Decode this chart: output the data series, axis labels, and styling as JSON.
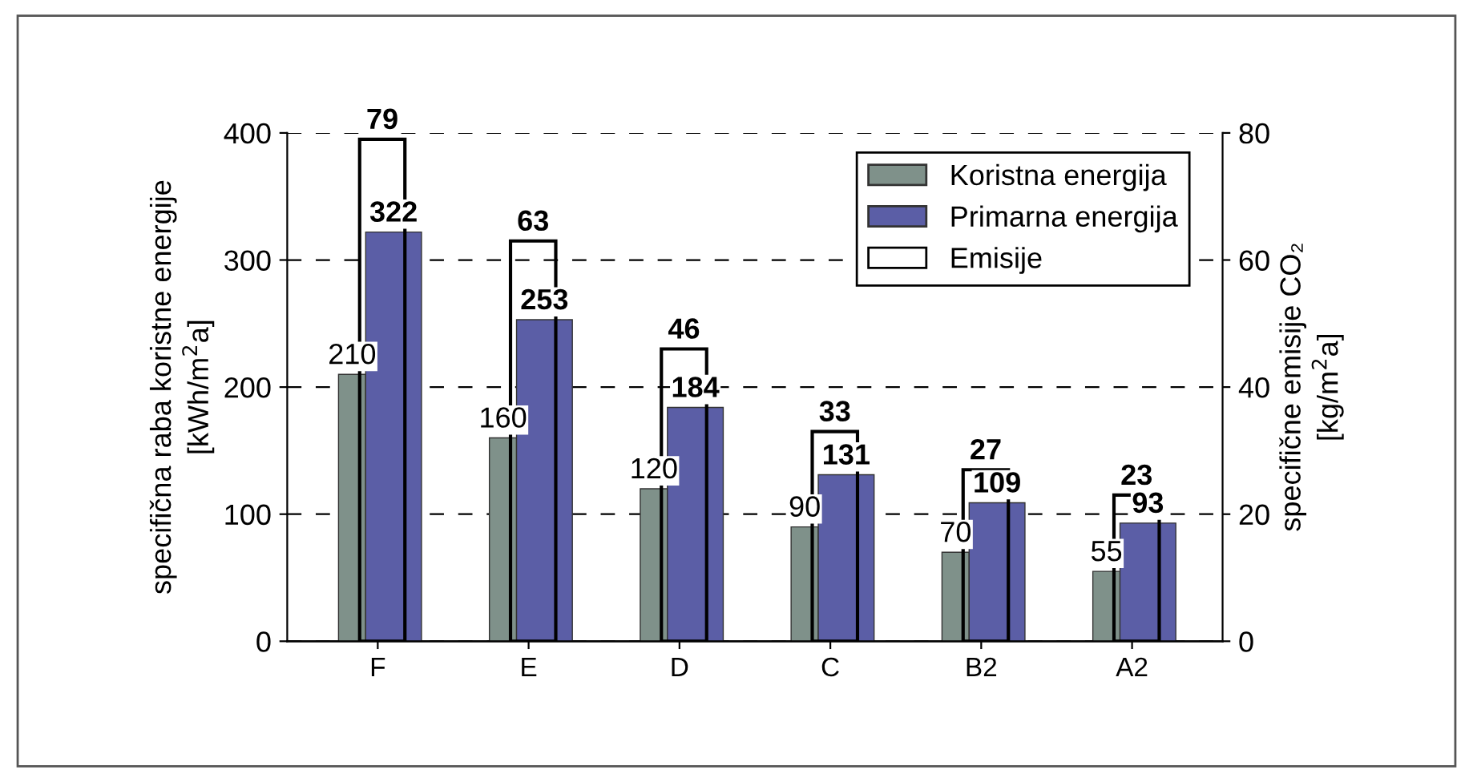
{
  "chart_data": {
    "type": "bar",
    "categories": [
      "F",
      "E",
      "D",
      "C",
      "B2",
      "A2"
    ],
    "series": [
      {
        "name": "Koristna energija",
        "color": "#7f918a",
        "values": [
          210,
          160,
          120,
          90,
          70,
          55
        ]
      },
      {
        "name": "Primarna energija",
        "color": "#5b5ea6",
        "values": [
          322,
          253,
          184,
          131,
          109,
          93
        ]
      },
      {
        "name": "Emisije",
        "color": "#000000",
        "axis": "y2",
        "values": [
          79,
          63,
          46,
          33,
          27,
          23
        ]
      }
    ],
    "ylabel": "specifična raba koristne energije\n[kWh/m$^{2}$a]",
    "y2label": "specifične emisije CO₂\n[kg/m$^{2}$a]",
    "ylim": [
      0,
      400
    ],
    "yticks": [
      0,
      100,
      200,
      300,
      400
    ],
    "y2lim": [
      0,
      80
    ],
    "y2ticks": [
      0,
      20,
      40,
      60,
      80
    ],
    "grid": "y",
    "legend": "top right",
    "data_labels": true
  }
}
